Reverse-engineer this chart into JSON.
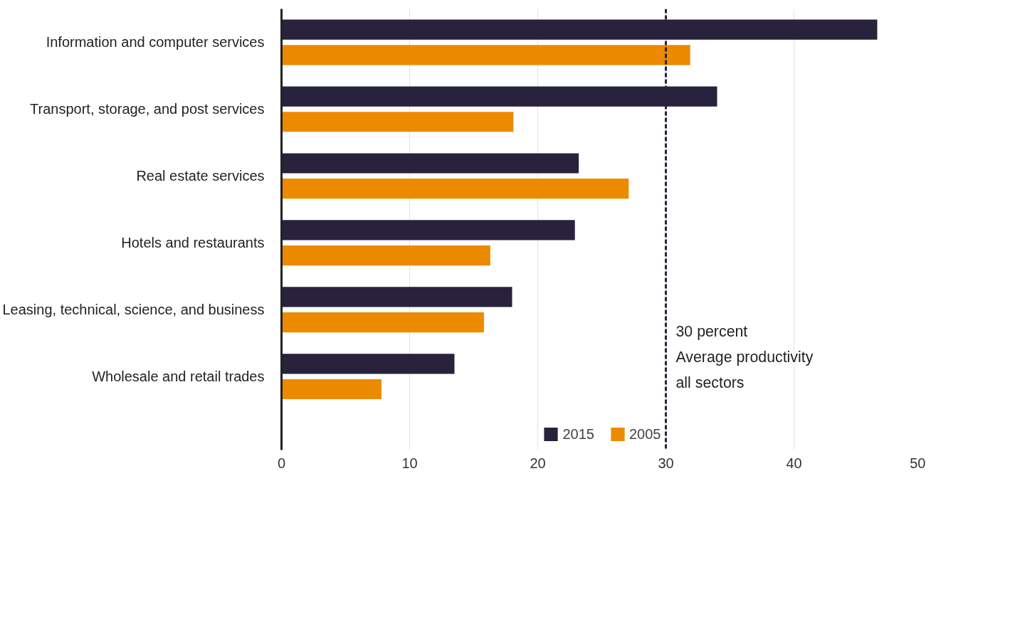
{
  "chart_data": {
    "type": "bar",
    "orientation": "horizontal",
    "categories": [
      "Information and computer services",
      "Transport, storage, and post services",
      "Real estate services",
      "Hotels and restaurants",
      "Leasing, technical, science, and business",
      "Wholesale and retail trades"
    ],
    "series": [
      {
        "name": "2015",
        "color": "#28223d",
        "values": [
          46.5,
          34.0,
          23.2,
          22.9,
          18.0,
          13.5
        ]
      },
      {
        "name": "2005",
        "color": "#ec8a00",
        "values": [
          31.9,
          18.1,
          27.1,
          16.3,
          15.8,
          7.8
        ]
      }
    ],
    "xlim": [
      0,
      50
    ],
    "xticks": [
      0,
      10,
      20,
      30,
      40,
      50
    ],
    "ref_lines": [
      {
        "axis": "x",
        "value": 30,
        "label": "30 percent\nAverage productivity\nall sectors",
        "color": "#28223d",
        "line_style": "dashed"
      }
    ],
    "grid": "x",
    "legend": "bottom"
  }
}
